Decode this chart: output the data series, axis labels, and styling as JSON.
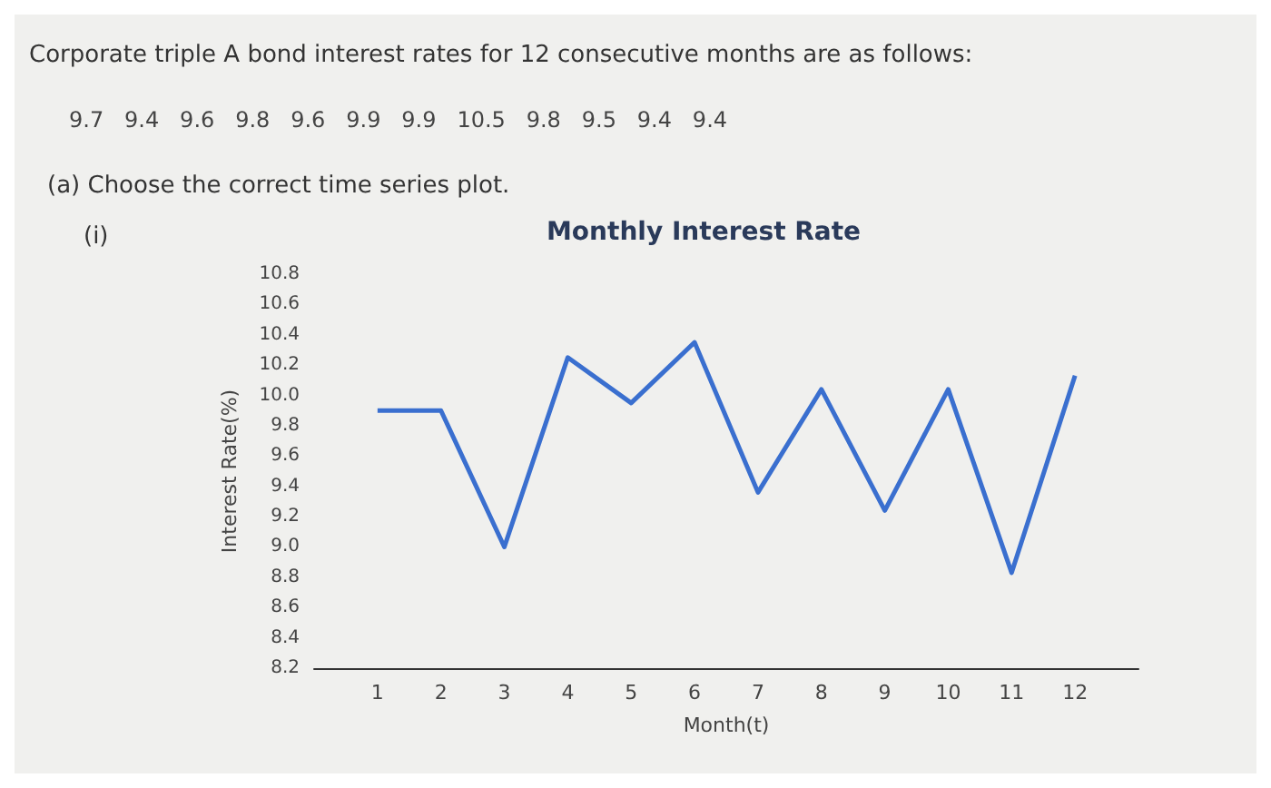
{
  "chart_data": {
    "type": "line",
    "title": "Monthly Interest Rate",
    "xlabel": "Month(t)",
    "ylabel": "Interest Rate(%)",
    "annotations": [
      "Corporate triple A bond interest rates for 12 consecutive months are as follows:",
      "9.7   9.4   9.6   9.8   9.6   9.9   9.9   10.5   9.8   9.5   9.4   9.4",
      "(a) Choose the correct time series plot.",
      "(i)"
    ],
    "x": [
      1,
      2,
      3,
      4,
      5,
      6,
      7,
      8,
      9,
      10,
      11,
      12
    ],
    "series": [
      {
        "color": "#3a6fcf",
        "values": [
          9.9,
          9.9,
          9.0,
          10.25,
          9.95,
          10.35,
          9.36,
          10.04,
          9.24,
          10.04,
          8.83,
          10.13
        ]
      }
    ],
    "xlim": [
      0,
      13
    ],
    "xticks": [
      1,
      2,
      3,
      4,
      5,
      6,
      7,
      8,
      9,
      10,
      11,
      12
    ],
    "ylim": [
      8.2,
      10.8
    ],
    "yticks": [
      8.2,
      8.4,
      8.6,
      8.8,
      {
        "value": 9,
        "label": "9.0"
      },
      9.2,
      9.4,
      9.6,
      9.8,
      {
        "value": 10,
        "label": "10.0"
      },
      10.2,
      10.4,
      10.6,
      10.8
    ],
    "grid": false,
    "marker": "none",
    "line_style": "solid"
  }
}
